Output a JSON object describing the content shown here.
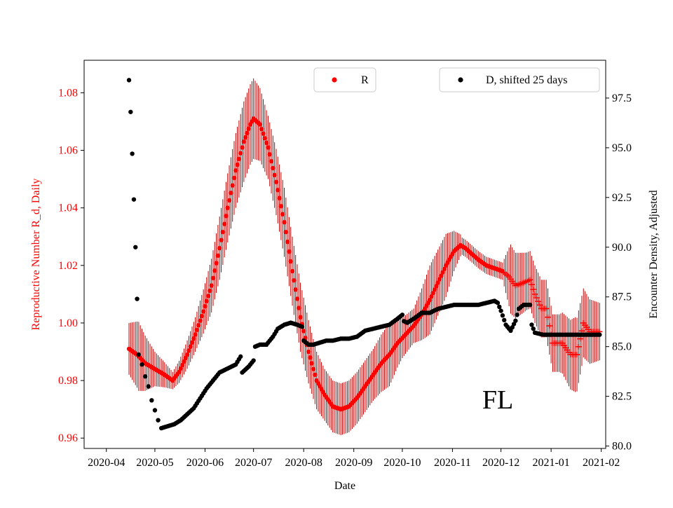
{
  "chart_data": {
    "type": "scatter",
    "annotation": "FL",
    "xlabel": "Date",
    "x_range": [
      -13.76,
      308.76
    ],
    "x_ticks": [
      {
        "label": "2020-04",
        "day": 0
      },
      {
        "label": "2020-05",
        "day": 30
      },
      {
        "label": "2020-06",
        "day": 61
      },
      {
        "label": "2020-07",
        "day": 91
      },
      {
        "label": "2020-08",
        "day": 122
      },
      {
        "label": "2020-09",
        "day": 153
      },
      {
        "label": "2020-10",
        "day": 183
      },
      {
        "label": "2020-11",
        "day": 214
      },
      {
        "label": "2020-12",
        "day": 244
      },
      {
        "label": "2021-01",
        "day": 275
      },
      {
        "label": "2021-02",
        "day": 306
      }
    ],
    "left_axis": {
      "label": "Reproductive Number R_d, Daily",
      "color": "#ff0000",
      "ylim": [
        0.9564,
        1.0913
      ],
      "ticks": [
        0.96,
        0.98,
        1.0,
        1.02,
        1.04,
        1.06,
        1.08
      ],
      "tick_labels": [
        "0.96",
        "0.98",
        "1.00",
        "1.02",
        "1.04",
        "1.06",
        "1.08"
      ]
    },
    "right_axis": {
      "label": "Encounter Density, Adjusted",
      "color": "#000000",
      "ylim": [
        79.88,
        99.4
      ],
      "ticks": [
        80.0,
        82.5,
        85.0,
        87.5,
        90.0,
        92.5,
        95.0,
        97.5
      ],
      "tick_labels": [
        "80.0",
        "82.5",
        "85.0",
        "87.5",
        "90.0",
        "92.5",
        "95.0",
        "97.5"
      ]
    },
    "legends": [
      {
        "label": "R",
        "color": "#ff0000",
        "placement": "top-center"
      },
      {
        "label": "D, shifted 25 days",
        "color": "#000000",
        "placement": "top-right"
      }
    ],
    "series": [
      {
        "name": "R",
        "axis": "left",
        "color": "#ff0000",
        "marker_dot_until_day": 245,
        "marker_after": "plus",
        "knots": [
          [
            14,
            0.991
          ],
          [
            19,
            0.989
          ],
          [
            24,
            0.986
          ],
          [
            30,
            0.984
          ],
          [
            36,
            0.982
          ],
          [
            41,
            0.98
          ],
          [
            45,
            0.983
          ],
          [
            50,
            0.989
          ],
          [
            55,
            0.996
          ],
          [
            60,
            1.004
          ],
          [
            65,
            1.013
          ],
          [
            70,
            1.026
          ],
          [
            75,
            1.04
          ],
          [
            80,
            1.053
          ],
          [
            85,
            1.063
          ],
          [
            89,
            1.069
          ],
          [
            91,
            1.071
          ],
          [
            95,
            1.069
          ],
          [
            100,
            1.061
          ],
          [
            105,
            1.049
          ],
          [
            110,
            1.035
          ],
          [
            115,
            1.018
          ],
          [
            120,
            1.002
          ],
          [
            125,
            0.99
          ],
          [
            130,
            0.98
          ],
          [
            135,
            0.975
          ],
          [
            140,
            0.971
          ],
          [
            145,
            0.97
          ],
          [
            150,
            0.971
          ],
          [
            155,
            0.974
          ],
          [
            160,
            0.978
          ],
          [
            165,
            0.982
          ],
          [
            170,
            0.986
          ],
          [
            175,
            0.989
          ],
          [
            180,
            0.993
          ],
          [
            185,
            0.996
          ],
          [
            190,
            0.999
          ],
          [
            195,
            1.003
          ],
          [
            200,
            1.008
          ],
          [
            205,
            1.014
          ],
          [
            210,
            1.02
          ],
          [
            215,
            1.025
          ],
          [
            219,
            1.027
          ],
          [
            222,
            1.026
          ],
          [
            226,
            1.024
          ],
          [
            230,
            1.022
          ],
          [
            235,
            1.02
          ],
          [
            240,
            1.019
          ],
          [
            245,
            1.018
          ],
          [
            249,
            1.016
          ],
          [
            253,
            1.013
          ],
          [
            258,
            1.014
          ],
          [
            262,
            1.015
          ],
          [
            265,
            1.01
          ],
          [
            269,
            1.005
          ],
          [
            272,
            1.005
          ],
          [
            276,
            0.993
          ],
          [
            282,
            0.993
          ],
          [
            287,
            0.989
          ],
          [
            291,
            0.989
          ],
          [
            295,
            1.0
          ],
          [
            299,
            0.997
          ],
          [
            305,
            0.997
          ]
        ],
        "err_knots": [
          [
            14,
            0.009
          ],
          [
            20,
            0.012
          ],
          [
            30,
            0.006
          ],
          [
            41,
            0.003
          ],
          [
            55,
            0.006
          ],
          [
            70,
            0.011
          ],
          [
            85,
            0.014
          ],
          [
            91,
            0.014
          ],
          [
            100,
            0.011
          ],
          [
            110,
            0.012
          ],
          [
            120,
            0.012
          ],
          [
            135,
            0.009
          ],
          [
            150,
            0.009
          ],
          [
            165,
            0.009
          ],
          [
            175,
            0.011
          ],
          [
            183,
            0.007
          ],
          [
            190,
            0.006
          ],
          [
            200,
            0.012
          ],
          [
            210,
            0.011
          ],
          [
            220,
            0.003
          ],
          [
            235,
            0.003
          ],
          [
            245,
            0.003
          ],
          [
            250,
            0.012
          ],
          [
            260,
            0.01
          ],
          [
            270,
            0.01
          ],
          [
            280,
            0.01
          ],
          [
            290,
            0.013
          ],
          [
            305,
            0.01
          ]
        ]
      },
      {
        "name": "D, shifted 25 days",
        "axis": "right",
        "color": "#000000",
        "points": [
          [
            14,
            98.4
          ],
          [
            15,
            96.8
          ],
          [
            16,
            94.7
          ],
          [
            17,
            92.4
          ],
          [
            18,
            90.0
          ],
          [
            19,
            87.4
          ],
          [
            20,
            84.6
          ],
          [
            22,
            84.1
          ],
          [
            24,
            83.5
          ],
          [
            26,
            83.0
          ],
          [
            28,
            82.3
          ],
          [
            30,
            81.8
          ],
          [
            32,
            81.3
          ],
          [
            34,
            80.9
          ]
        ],
        "knots": [
          [
            34,
            80.9
          ],
          [
            38,
            81.0
          ],
          [
            42,
            81.1
          ],
          [
            46,
            81.3
          ],
          [
            50,
            81.6
          ],
          [
            54,
            81.9
          ],
          [
            58,
            82.4
          ],
          [
            62,
            82.9
          ],
          [
            66,
            83.3
          ],
          [
            70,
            83.7
          ],
          [
            75,
            83.9
          ],
          [
            80,
            84.1
          ],
          [
            83,
            84.5
          ],
          [
            84,
            83.7
          ],
          [
            88,
            84.0
          ],
          [
            91,
            84.3
          ],
          [
            92,
            85.0
          ],
          [
            95,
            85.1
          ],
          [
            99,
            85.1
          ],
          [
            103,
            85.5
          ],
          [
            106,
            85.9
          ],
          [
            110,
            86.1
          ],
          [
            114,
            86.2
          ],
          [
            118,
            86.1
          ],
          [
            121,
            86.0
          ],
          [
            122,
            85.3
          ],
          [
            125,
            85.1
          ],
          [
            128,
            85.1
          ],
          [
            132,
            85.2
          ],
          [
            136,
            85.3
          ],
          [
            140,
            85.3
          ],
          [
            145,
            85.4
          ],
          [
            150,
            85.4
          ],
          [
            155,
            85.5
          ],
          [
            160,
            85.8
          ],
          [
            165,
            85.9
          ],
          [
            170,
            86.0
          ],
          [
            175,
            86.1
          ],
          [
            180,
            86.4
          ],
          [
            183,
            86.6
          ],
          [
            183.5,
            86.3
          ],
          [
            186,
            86.2
          ],
          [
            190,
            86.4
          ],
          [
            195,
            86.7
          ],
          [
            200,
            86.7
          ],
          [
            205,
            86.9
          ],
          [
            210,
            87.0
          ],
          [
            215,
            87.1
          ],
          [
            220,
            87.1
          ],
          [
            225,
            87.1
          ],
          [
            230,
            87.1
          ],
          [
            235,
            87.2
          ],
          [
            240,
            87.3
          ],
          [
            242,
            87.2
          ],
          [
            244,
            86.8
          ],
          [
            247,
            86.1
          ],
          [
            250,
            85.8
          ],
          [
            253,
            86.3
          ],
          [
            255,
            86.9
          ],
          [
            258,
            87.1
          ],
          [
            262,
            87.1
          ],
          [
            263,
            86.1
          ],
          [
            265,
            85.7
          ],
          [
            270,
            85.6
          ],
          [
            280,
            85.6
          ],
          [
            290,
            85.6
          ],
          [
            305,
            85.6
          ]
        ]
      }
    ]
  }
}
